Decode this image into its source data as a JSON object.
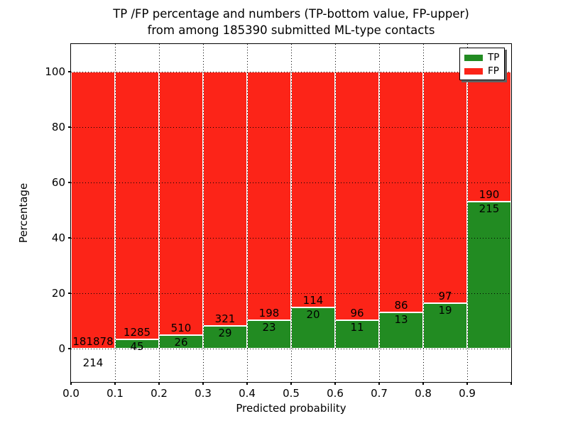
{
  "title": {
    "line1": "TP /FP percentage and numbers (TP-bottom value, FP-upper)",
    "line2": "from among 185390 submitted ML-type contacts"
  },
  "axes": {
    "xlabel": "Predicted probability",
    "ylabel": "Percentage",
    "xtick_labels": [
      "0.0",
      "0.1",
      "0.2",
      "0.3",
      "0.4",
      "0.5",
      "0.6",
      "0.7",
      "0.8",
      "0.9"
    ],
    "ytick_labels": [
      "0",
      "20",
      "40",
      "60",
      "80",
      "100"
    ]
  },
  "legend": {
    "items": [
      {
        "label": "TP",
        "color": "#228b22"
      },
      {
        "label": "FP",
        "color": "#fc2418"
      }
    ]
  },
  "chart_data": {
    "type": "bar",
    "stacked": true,
    "normalized_to_percent": true,
    "title": "TP /FP percentage and numbers (TP-bottom value, FP-upper) from among 185390 submitted ML-type contacts",
    "xlabel": "Predicted probability",
    "ylabel": "Percentage",
    "categories": [
      "0.0-0.1",
      "0.1-0.2",
      "0.2-0.3",
      "0.3-0.4",
      "0.4-0.5",
      "0.5-0.6",
      "0.6-0.7",
      "0.7-0.8",
      "0.8-0.9",
      "0.9-1.0"
    ],
    "series": [
      {
        "name": "TP",
        "color": "#228b22",
        "counts": [
          214,
          45,
          26,
          29,
          23,
          20,
          11,
          13,
          19,
          215
        ]
      },
      {
        "name": "FP",
        "color": "#fc2418",
        "counts": [
          181878,
          1285,
          510,
          321,
          198,
          114,
          96,
          86,
          97,
          190
        ]
      }
    ],
    "total_contacts": 185390,
    "bar_value_note": "each bar spans 0-100%; green height = TP/(TP+FP)*100",
    "xlim": [
      0.0,
      1.0
    ],
    "ylim": [
      -12,
      110
    ],
    "xticks": [
      0.0,
      0.1,
      0.2,
      0.3,
      0.4,
      0.5,
      0.6,
      0.7,
      0.8,
      0.9,
      1.0
    ],
    "yticks": [
      0,
      20,
      40,
      60,
      80,
      100
    ],
    "grid": "dotted, drawn over bars",
    "legend_position": "upper right"
  }
}
